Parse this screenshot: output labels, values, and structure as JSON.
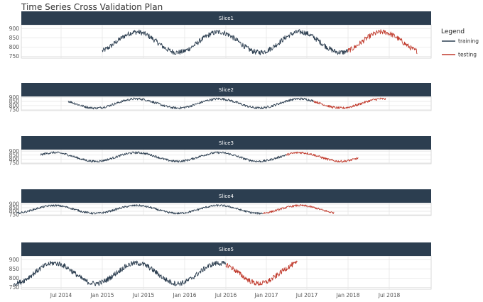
{
  "chart_data": {
    "type": "line",
    "title": "Time Series Cross Validation Plan",
    "legend": {
      "title": "Legend",
      "position": "right",
      "entries": [
        {
          "name": "training",
          "color": "#2c3e50"
        },
        {
          "name": "testing",
          "color": "#c0392b"
        }
      ]
    },
    "x_ticks": [
      "Jul 2014",
      "Jan 2015",
      "Jul 2015",
      "Jan 2016",
      "Jul 2016",
      "Jan 2017",
      "Jul 2017",
      "Jan 2018",
      "Jul 2018"
    ],
    "x_range": [
      "2013-12-01",
      "2018-11-01"
    ],
    "y_ticks": [
      "750",
      "800",
      "850",
      "900"
    ],
    "grid": true,
    "panels": [
      {
        "name": "Slice1",
        "ylim": [
          740,
          920
        ],
        "train_start": "2015-01-01",
        "train_end": "2017-12-31",
        "test_start": "2018-01-01",
        "test_end": "2018-11-01"
      },
      {
        "name": "Slice2",
        "ylim": [
          740,
          910
        ],
        "train_start": "2014-08-01",
        "train_end": "2017-07-31",
        "test_start": "2017-08-01",
        "test_end": "2018-06-15"
      },
      {
        "name": "Slice3",
        "ylim": [
          740,
          920
        ],
        "train_start": "2014-04-01",
        "train_end": "2017-03-31",
        "test_start": "2017-04-01",
        "test_end": "2018-02-15"
      },
      {
        "name": "Slice4",
        "ylim": [
          740,
          920
        ],
        "train_start": "2013-12-15",
        "train_end": "2016-12-15",
        "test_start": "2016-12-16",
        "test_end": "2017-10-31"
      },
      {
        "name": "Slice5",
        "ylim": [
          740,
          920
        ],
        "train_start": "2013-12-01",
        "train_end": "2016-06-30",
        "test_start": "2016-07-01",
        "test_end": "2017-05-20"
      }
    ],
    "series_model": {
      "baseline": 826,
      "amplitude": 55,
      "noise": 14,
      "peak_date": "2015-06-01",
      "period_days": 365
    }
  }
}
